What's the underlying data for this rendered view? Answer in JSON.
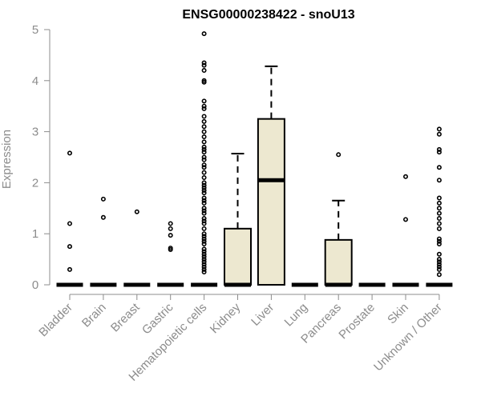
{
  "chart_data": {
    "type": "box",
    "title": "ENSG00000238422 - snoU13",
    "ylabel": "Expression",
    "xlabel": "",
    "ylim": [
      0,
      5
    ],
    "yticks": [
      0,
      1,
      2,
      3,
      4,
      5
    ],
    "box_fill": "#ede8d0",
    "categories": [
      "Bladder",
      "Brain",
      "Breast",
      "Gastric",
      "Hematopoietic cells",
      "Kidney",
      "Liver",
      "Lung",
      "Pancreas",
      "Prostate",
      "Skin",
      "Unknown / Other"
    ],
    "boxes": [
      {
        "category": "Bladder",
        "min": 0,
        "q1": 0,
        "median": 0,
        "q3": 0,
        "max": 0,
        "outliers": [
          2.58,
          1.2,
          0.75,
          0.3
        ]
      },
      {
        "category": "Brain",
        "min": 0,
        "q1": 0,
        "median": 0,
        "q3": 0,
        "max": 0,
        "outliers": [
          1.68,
          1.32
        ]
      },
      {
        "category": "Breast",
        "min": 0,
        "q1": 0,
        "median": 0,
        "q3": 0,
        "max": 0,
        "outliers": [
          1.43
        ]
      },
      {
        "category": "Gastric",
        "min": 0,
        "q1": 0,
        "median": 0,
        "q3": 0,
        "max": 0,
        "outliers": [
          1.2,
          1.1,
          0.97,
          0.72,
          0.69
        ]
      },
      {
        "category": "Hematopoietic cells",
        "min": 0,
        "q1": 0,
        "median": 0,
        "q3": 0,
        "max": 0,
        "outliers": [
          4.92,
          4.35,
          4.3,
          4.2,
          4.0,
          3.97,
          3.6,
          3.5,
          3.45,
          3.3,
          3.2,
          3.1,
          3.0,
          2.9,
          2.8,
          2.7,
          2.65,
          2.6,
          2.5,
          2.45,
          2.35,
          2.3,
          2.2,
          2.1,
          2.0,
          1.95,
          1.9,
          1.85,
          1.8,
          1.7,
          1.65,
          1.6,
          1.5,
          1.45,
          1.4,
          1.3,
          1.25,
          1.2,
          1.1,
          1.0,
          0.95,
          0.9,
          0.85,
          0.8,
          0.7,
          0.65,
          0.6,
          0.55,
          0.5,
          0.45,
          0.4,
          0.35,
          0.3,
          0.25
        ]
      },
      {
        "category": "Kidney",
        "min": 0,
        "q1": 0,
        "median": 0,
        "q3": 1.1,
        "max": 2.57,
        "outliers": []
      },
      {
        "category": "Liver",
        "min": 0,
        "q1": 0,
        "median": 2.05,
        "q3": 3.25,
        "max": 4.28,
        "outliers": []
      },
      {
        "category": "Lung",
        "min": 0,
        "q1": 0,
        "median": 0,
        "q3": 0,
        "max": 0,
        "outliers": []
      },
      {
        "category": "Pancreas",
        "min": 0,
        "q1": 0,
        "median": 0,
        "q3": 0.88,
        "max": 1.65,
        "outliers": [
          2.55
        ]
      },
      {
        "category": "Prostate",
        "min": 0,
        "q1": 0,
        "median": 0,
        "q3": 0,
        "max": 0,
        "outliers": []
      },
      {
        "category": "Skin",
        "min": 0,
        "q1": 0,
        "median": 0,
        "q3": 0,
        "max": 0,
        "outliers": [
          2.12,
          1.28
        ]
      },
      {
        "category": "Unknown / Other",
        "min": 0,
        "q1": 0,
        "median": 0,
        "q3": 0,
        "max": 0,
        "outliers": [
          3.05,
          2.95,
          2.65,
          2.6,
          2.3,
          2.05,
          1.7,
          1.6,
          1.5,
          1.4,
          1.3,
          1.2,
          1.1,
          0.9,
          0.85,
          0.8,
          0.6,
          0.5,
          0.45,
          0.4,
          0.35,
          0.3,
          0.2
        ]
      }
    ],
    "grid": false,
    "legend": "none"
  }
}
